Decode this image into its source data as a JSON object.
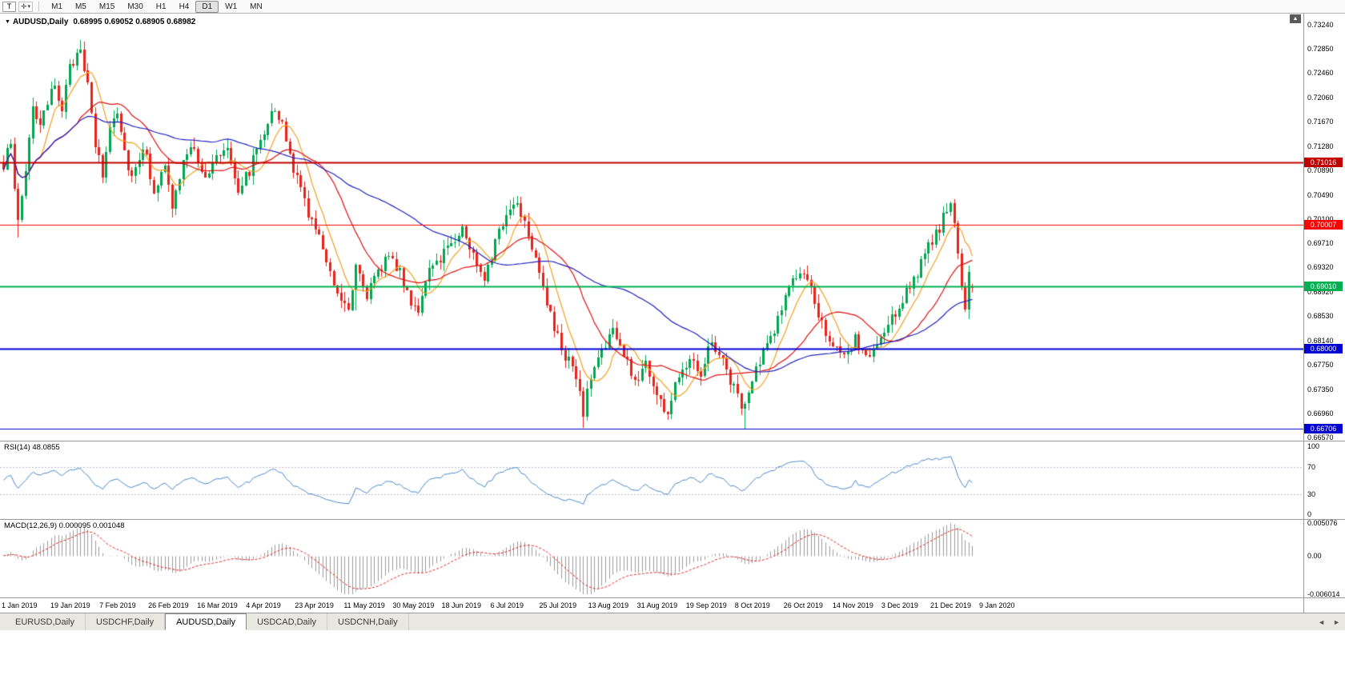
{
  "toolbar": {
    "tool_button_label": "T",
    "draw_tool_icon": "✛",
    "dropdown_caret": "▾",
    "timeframes": [
      "M1",
      "M5",
      "M15",
      "M30",
      "H1",
      "H4",
      "D1",
      "W1",
      "MN"
    ],
    "active_timeframe": "D1"
  },
  "chart": {
    "symbol_marker": "▼",
    "title": "AUDUSD,Daily",
    "ohlc_text": "0.68995 0.69052 0.68905 0.68982",
    "price_axis": [
      "0.73240",
      "0.72850",
      "0.72460",
      "0.72060",
      "0.71670",
      "0.71280",
      "0.70890",
      "0.70490",
      "0.70100",
      "0.69710",
      "0.69320",
      "0.68920",
      "0.68530",
      "0.68140",
      "0.67750",
      "0.67350",
      "0.66960",
      "0.66570"
    ],
    "hlines": [
      {
        "price": 0.71016,
        "label": "0.71016",
        "color": "#c00000",
        "width": 2
      },
      {
        "price": 0.70007,
        "label": "0.70007",
        "color": "#ff0000",
        "width": 1
      },
      {
        "price": 0.6901,
        "label": "0.69010",
        "color": "#00b050",
        "width": 2
      },
      {
        "price": 0.68,
        "label": "0.68000",
        "color": "#0000d0",
        "width": 2
      },
      {
        "price": 0.66706,
        "label": "0.66706",
        "color": "#0000d0",
        "width": 1
      }
    ],
    "dates": [
      "1 Jan 2019",
      "19 Jan 2019",
      "7 Feb 2019",
      "26 Feb 2019",
      "16 Mar 2019",
      "4 Apr 2019",
      "23 Apr 2019",
      "11 May 2019",
      "30 May 2019",
      "18 Jun 2019",
      "6 Jul 2019",
      "25 Jul 2019",
      "13 Aug 2019",
      "31 Aug 2019",
      "19 Sep 2019",
      "8 Oct 2019",
      "26 Oct 2019",
      "14 Nov 2019",
      "3 Dec 2019",
      "21 Dec 2019",
      "9 Jan 2020"
    ]
  },
  "rsi": {
    "label": "RSI(14) 48.0855",
    "period": 14,
    "value": 48.0855,
    "axis": [
      "100",
      "70",
      "30",
      "0"
    ],
    "levels": [
      70,
      30
    ],
    "line_color": "#4a86c8"
  },
  "macd": {
    "label": "MACD(12,26,9) 0.000095 0.001048",
    "fast": 12,
    "slow": 26,
    "signal": 9,
    "value": 9.5e-05,
    "signal_value": 0.001048,
    "axis": [
      "0.005076",
      "0.00",
      "-0.006014"
    ],
    "range": [
      0.005076,
      -0.006014
    ],
    "hist_color": "#9a9a9a",
    "signal_color": "#e02020"
  },
  "tabs": {
    "items": [
      "EURUSD,Daily",
      "USDCHF,Daily",
      "AUDUSD,Daily",
      "USDCAD,Daily",
      "USDCNH,Daily"
    ],
    "active": "AUDUSD,Daily",
    "scroll_left": "◄",
    "scroll_right": "►"
  },
  "chart_data": {
    "type": "candlestick",
    "symbol": "AUDUSD",
    "timeframe": "Daily",
    "last_ohlc": {
      "open": 0.68995,
      "high": 0.69052,
      "low": 0.68905,
      "close": 0.68982
    },
    "y_range": [
      0.6657,
      0.7324
    ],
    "num_candles": 265,
    "candle_up_color": "#00a651",
    "candle_down_color": "#e8231a",
    "moving_averages": [
      {
        "period": 8,
        "color": "#f0a020"
      },
      {
        "period": 21,
        "color": "#e01010"
      },
      {
        "period": 55,
        "color": "#2020c0"
      }
    ],
    "close_path_anchors": [
      [
        0,
        0.709
      ],
      [
        2,
        0.714
      ],
      [
        4,
        0.7
      ],
      [
        6,
        0.709
      ],
      [
        8,
        0.7195
      ],
      [
        10,
        0.716
      ],
      [
        12,
        0.719
      ],
      [
        14,
        0.723
      ],
      [
        16,
        0.719
      ],
      [
        18,
        0.725
      ],
      [
        21,
        0.7295
      ],
      [
        23,
        0.722
      ],
      [
        25,
        0.713
      ],
      [
        27,
        0.708
      ],
      [
        29,
        0.716
      ],
      [
        31,
        0.719
      ],
      [
        33,
        0.712
      ],
      [
        35,
        0.708
      ],
      [
        38,
        0.713
      ],
      [
        41,
        0.706
      ],
      [
        44,
        0.709
      ],
      [
        46,
        0.703
      ],
      [
        49,
        0.71
      ],
      [
        52,
        0.713
      ],
      [
        55,
        0.707
      ],
      [
        58,
        0.711
      ],
      [
        61,
        0.713
      ],
      [
        64,
        0.706
      ],
      [
        67,
        0.709
      ],
      [
        70,
        0.714
      ],
      [
        73,
        0.719
      ],
      [
        76,
        0.716
      ],
      [
        79,
        0.709
      ],
      [
        82,
        0.704
      ],
      [
        85,
        0.699
      ],
      [
        88,
        0.695
      ],
      [
        91,
        0.689
      ],
      [
        94,
        0.687
      ],
      [
        96,
        0.694
      ],
      [
        99,
        0.689
      ],
      [
        102,
        0.692
      ],
      [
        105,
        0.696
      ],
      [
        108,
        0.692
      ],
      [
        111,
        0.688
      ],
      [
        113,
        0.6865
      ],
      [
        116,
        0.692
      ],
      [
        119,
        0.695
      ],
      [
        122,
        0.6975
      ],
      [
        125,
        0.6995
      ],
      [
        128,
        0.695
      ],
      [
        131,
        0.692
      ],
      [
        134,
        0.697
      ],
      [
        137,
        0.702
      ],
      [
        140,
        0.704
      ],
      [
        143,
        0.699
      ],
      [
        146,
        0.693
      ],
      [
        149,
        0.685
      ],
      [
        152,
        0.68
      ],
      [
        155,
        0.677
      ],
      [
        158,
        0.67
      ],
      [
        160,
        0.6755
      ],
      [
        163,
        0.68
      ],
      [
        166,
        0.683
      ],
      [
        169,
        0.679
      ],
      [
        172,
        0.6745
      ],
      [
        175,
        0.678
      ],
      [
        178,
        0.6725
      ],
      [
        181,
        0.6695
      ],
      [
        184,
        0.676
      ],
      [
        187,
        0.679
      ],
      [
        190,
        0.6765
      ],
      [
        193,
        0.6815
      ],
      [
        196,
        0.678
      ],
      [
        199,
        0.6735
      ],
      [
        202,
        0.6705
      ],
      [
        205,
        0.6765
      ],
      [
        208,
        0.6805
      ],
      [
        211,
        0.685
      ],
      [
        214,
        0.69
      ],
      [
        217,
        0.6925
      ],
      [
        220,
        0.689
      ],
      [
        223,
        0.6845
      ],
      [
        226,
        0.6805
      ],
      [
        229,
        0.678
      ],
      [
        232,
        0.6815
      ],
      [
        235,
        0.6785
      ],
      [
        238,
        0.6805
      ],
      [
        241,
        0.6835
      ],
      [
        244,
        0.687
      ],
      [
        247,
        0.6905
      ],
      [
        250,
        0.6935
      ],
      [
        253,
        0.6975
      ],
      [
        256,
        0.701
      ],
      [
        258,
        0.703
      ],
      [
        259,
        0.6995
      ],
      [
        260,
        0.695
      ],
      [
        261,
        0.6905
      ],
      [
        262,
        0.687
      ],
      [
        263,
        0.6915
      ],
      [
        264,
        0.68982
      ]
    ],
    "wick_lows": [
      [
        4,
        0.698
      ],
      [
        96,
        0.6862
      ],
      [
        113,
        0.6858
      ],
      [
        158,
        0.6672
      ],
      [
        181,
        0.6686
      ],
      [
        202,
        0.6671
      ],
      [
        262,
        0.6862
      ]
    ],
    "wick_highs": [
      [
        21,
        0.73
      ],
      [
        140,
        0.7048
      ],
      [
        258,
        0.7035
      ]
    ]
  }
}
